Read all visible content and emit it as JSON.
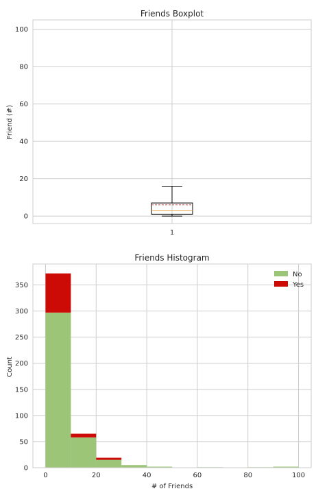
{
  "chart_data": [
    {
      "type": "boxplot",
      "title": "Friends Boxplot",
      "xlabel": "",
      "ylabel": "Friend (#)",
      "ylim": [
        -4,
        105
      ],
      "yticks": [
        0,
        20,
        40,
        60,
        80,
        100
      ],
      "categories": [
        "1"
      ],
      "grid": true,
      "boxes": [
        {
          "category": "1",
          "whisker_low": 0,
          "q1": 1,
          "median": 3,
          "mean": 6,
          "q3": 7,
          "whisker_high": 16
        }
      ]
    },
    {
      "type": "bar",
      "stacked": true,
      "title": "Friends Histogram",
      "xlabel": "# of Friends",
      "ylabel": "Count",
      "xlim": [
        -5,
        105
      ],
      "ylim": [
        0,
        390
      ],
      "xticks": [
        0,
        20,
        40,
        60,
        80,
        100
      ],
      "yticks": [
        0,
        50,
        100,
        150,
        200,
        250,
        300,
        350
      ],
      "grid": true,
      "legend_position": "top-right",
      "bin_edges": [
        0,
        10,
        20,
        30,
        40,
        50,
        60,
        70,
        80,
        90,
        100
      ],
      "series": [
        {
          "name": "No",
          "color": "#9dc577",
          "values": [
            297,
            58,
            15,
            5,
            2,
            0,
            1,
            0,
            1,
            2
          ]
        },
        {
          "name": "Yes",
          "color": "#cc0a06",
          "values": [
            75,
            7,
            4,
            0,
            0,
            0,
            0,
            0,
            0,
            0
          ]
        }
      ]
    }
  ]
}
